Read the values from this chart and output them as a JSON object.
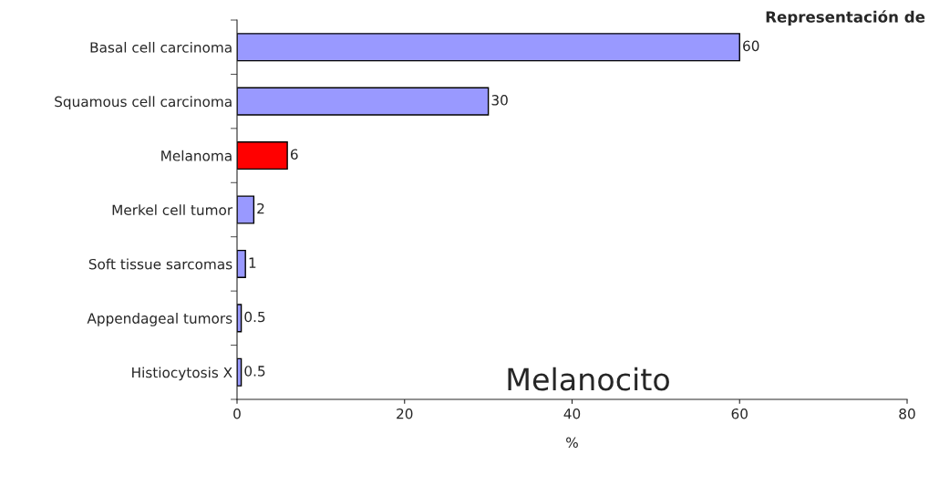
{
  "chart_data": {
    "type": "bar",
    "orientation": "horizontal",
    "xlabel": "%",
    "categories": [
      "Basal cell carcinoma",
      "Squamous cell carcinoma",
      "Melanoma",
      "Merkel cell tumor",
      "Soft tissue sarcomas",
      "Appendageal tumors",
      "Histiocytosis X"
    ],
    "values": [
      60,
      30,
      6,
      2,
      1,
      0.5,
      0.5
    ],
    "colors": [
      "#9999ff",
      "#9999ff",
      "#ff0000",
      "#9999ff",
      "#9999ff",
      "#9999ff",
      "#9999ff"
    ],
    "xlim": [
      0,
      80
    ],
    "xticks": [
      0,
      20,
      40,
      60,
      80
    ],
    "data_labels": true,
    "grid": false,
    "legend": false,
    "annotations": [
      "Representación de",
      "Melanocito"
    ]
  }
}
